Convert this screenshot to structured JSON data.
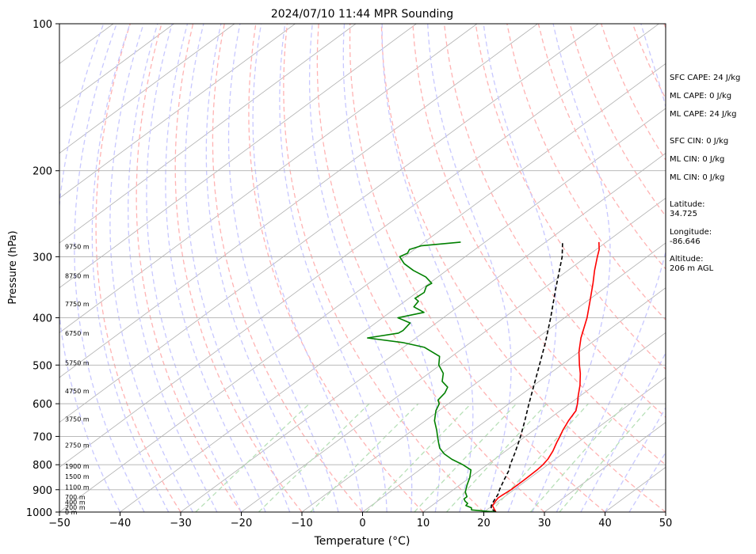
{
  "chart_data": {
    "type": "line",
    "title": "2024/07/10 11:44 MPR Sounding",
    "xlabel": "Temperature (°C)",
    "ylabel": "Pressure (hPa)",
    "xlim": [
      -50,
      50
    ],
    "ylim": [
      1000,
      100
    ],
    "yscale": "log",
    "x_ticks": [
      -50,
      -40,
      -30,
      -20,
      -10,
      0,
      10,
      20,
      30,
      40,
      50
    ],
    "y_ticks": [
      100,
      200,
      300,
      400,
      500,
      600,
      700,
      800,
      900,
      1000
    ],
    "skew": true,
    "grid": true,
    "series": [
      {
        "color": "#ff0000",
        "dash": "solid",
        "pressure": [
          1000,
          985,
          970,
          950,
          935,
          920,
          900,
          860,
          820,
          800,
          780,
          750,
          720,
          700,
          680,
          650,
          620,
          600,
          580,
          550,
          520,
          500,
          470,
          440,
          400,
          370,
          340,
          320,
          300,
          290,
          280
        ],
        "temperature": [
          22,
          21,
          20,
          19.5,
          19.2,
          19.3,
          19.5,
          19.5,
          19.4,
          19.2,
          18.8,
          17.8,
          16.5,
          15.7,
          14.8,
          13.6,
          12.6,
          11.3,
          9.8,
          7.6,
          5.0,
          3.0,
          0.0,
          -2.8,
          -6.3,
          -9.5,
          -13.0,
          -15.6,
          -18.2,
          -19.5,
          -21.2
        ]
      },
      {
        "color": "#000000",
        "dash": "dashed",
        "pressure": [
          1000,
          985,
          970,
          950,
          920,
          900,
          860,
          820,
          800,
          760,
          720,
          700,
          650,
          600,
          550,
          500,
          450,
          400,
          350,
          300,
          280
        ],
        "temperature": [
          22,
          20.5,
          19.8,
          19.2,
          18.4,
          17.6,
          16.2,
          14.8,
          13.8,
          12.1,
          10.2,
          9.2,
          6.4,
          3.3,
          0.0,
          -3.6,
          -7.6,
          -12.3,
          -17.8,
          -24.0,
          -27.2
        ]
      },
      {
        "color": "#008000",
        "dash": "solid",
        "pressure": [
          1000,
          990,
          980,
          970,
          960,
          950,
          940,
          930,
          910,
          880,
          850,
          820,
          800,
          780,
          760,
          740,
          720,
          700,
          680,
          650,
          620,
          600,
          590,
          570,
          555,
          540,
          520,
          500,
          480,
          460,
          450,
          440,
          430,
          425,
          410,
          400,
          390,
          380,
          370,
          365,
          355,
          345,
          340,
          330,
          320,
          310,
          300,
          295,
          290,
          285,
          280
        ],
        "temperature": [
          22,
          17.5,
          17.0,
          15.6,
          15.4,
          14.5,
          13.8,
          13.8,
          12.5,
          11.2,
          10.0,
          8.5,
          6.0,
          3.0,
          0.5,
          -1.5,
          -3.0,
          -4.5,
          -6.0,
          -8.5,
          -10.5,
          -11.5,
          -12.5,
          -13.0,
          -13.8,
          -16.0,
          -17.6,
          -20.2,
          -22.0,
          -26.5,
          -31.0,
          -38.0,
          -34.0,
          -33.8,
          -34.3,
          -37.5,
          -34.4,
          -37.3,
          -37.8,
          -39.0,
          -38.8,
          -39.8,
          -39.6,
          -42.0,
          -45.5,
          -48.5,
          -50.8,
          -50.3,
          -50.8,
          -49.7,
          -44.0
        ]
      }
    ],
    "height_labels": [
      {
        "p": 1000,
        "text": "0 m"
      },
      {
        "p": 977,
        "text": "200 m"
      },
      {
        "p": 955,
        "text": "400 m"
      },
      {
        "p": 932,
        "text": "700 m"
      },
      {
        "p": 889,
        "text": "1100 m"
      },
      {
        "p": 845,
        "text": "1500 m"
      },
      {
        "p": 805,
        "text": "1900 m"
      },
      {
        "p": 730,
        "text": "2750 m"
      },
      {
        "p": 645,
        "text": "3750 m"
      },
      {
        "p": 565,
        "text": "4750 m"
      },
      {
        "p": 495,
        "text": "5750 m"
      },
      {
        "p": 430,
        "text": "6750 m"
      },
      {
        "p": 375,
        "text": "7750 m"
      },
      {
        "p": 328,
        "text": "8750 m"
      },
      {
        "p": 286,
        "text": "9750 m"
      }
    ],
    "background": {
      "isotherm_color": "#b0b0b0",
      "dry_adiabat_color": "#ffb3b3",
      "moist_adiabat_color": "#c8c8ff",
      "mixing_ratio_color": "#b8e0b8"
    }
  },
  "side_panel": {
    "sfc_cape": "SFC CAPE: 24 J/kg",
    "ml_cape": "ML CAPE: 0 J/kg",
    "ml_cape2": "ML CAPE: 24 J/kg",
    "sfc_cin": "SFC CIN: 0 J/kg",
    "ml_cin": "ML CIN: 0 J/kg",
    "ml_cin2": "ML CIN: 0 J/kg",
    "latitude": "Latitude:\n34.725",
    "longitude": "Longitude:\n-86.646",
    "altitude": "Altitude:\n206 m AGL"
  }
}
